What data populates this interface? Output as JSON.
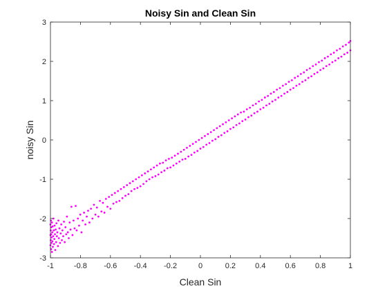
{
  "chart_data": {
    "type": "scatter",
    "title": "Noisy Sin and Clean Sin",
    "xlabel": "Clean Sin",
    "ylabel": "noisy Sin",
    "xlim": [
      -1,
      1
    ],
    "ylim": [
      -3,
      3
    ],
    "x_ticks": [
      -1,
      -0.8,
      -0.6,
      -0.4,
      -0.2,
      0,
      0.2,
      0.4,
      0.6,
      0.8,
      1
    ],
    "x_tick_labels": [
      "-1",
      "-0.8",
      "-0.6",
      "-0.4",
      "-0.2",
      "0",
      "0.2",
      "0.4",
      "0.6",
      "0.8",
      "1"
    ],
    "y_ticks": [
      -3,
      -2,
      -1,
      0,
      1,
      2,
      3
    ],
    "y_tick_labels": [
      "-3",
      "-2",
      "-1",
      "0",
      "1",
      "2",
      "3"
    ],
    "grid": false,
    "box": true,
    "marker_color": "#ff00ff",
    "series": [
      {
        "marker_color": "#ff00ff",
        "points": [
          [
            -1.0,
            -2.42
          ],
          [
            -1.0,
            -2.15
          ],
          [
            -1.0,
            -2.68
          ],
          [
            -0.998,
            -2.3
          ],
          [
            -0.998,
            -2.55
          ],
          [
            -0.997,
            -2.05
          ],
          [
            -0.996,
            -2.78
          ],
          [
            -0.995,
            -2.4
          ],
          [
            -0.994,
            -2.22
          ],
          [
            -0.993,
            -2.62
          ],
          [
            -0.992,
            -2.48
          ],
          [
            -0.99,
            -2.1
          ],
          [
            -0.99,
            -2.85
          ],
          [
            -0.988,
            -2.35
          ],
          [
            -0.987,
            -2.58
          ],
          [
            -0.985,
            -2.2
          ],
          [
            -0.984,
            -2.72
          ],
          [
            -0.982,
            -2.45
          ],
          [
            -0.98,
            -2.0
          ],
          [
            -0.978,
            -2.3
          ],
          [
            -0.976,
            -2.65
          ],
          [
            -0.974,
            -2.52
          ],
          [
            -0.972,
            -2.18
          ],
          [
            -0.97,
            -2.4
          ],
          [
            -0.968,
            -2.8
          ],
          [
            -0.965,
            -2.28
          ],
          [
            -0.962,
            -2.6
          ],
          [
            -0.96,
            -2.12
          ],
          [
            -0.957,
            -2.45
          ],
          [
            -0.954,
            -2.35
          ],
          [
            -0.95,
            -2.7
          ],
          [
            -0.947,
            -2.05
          ],
          [
            -0.944,
            -2.5
          ],
          [
            -0.94,
            -2.25
          ],
          [
            -0.936,
            -2.62
          ],
          [
            -0.932,
            -2.38
          ],
          [
            -0.928,
            -2.15
          ],
          [
            -0.924,
            -2.55
          ],
          [
            -0.92,
            -2.3
          ],
          [
            -0.915,
            -2.45
          ],
          [
            -0.91,
            -2.08
          ],
          [
            -0.905,
            -2.6
          ],
          [
            -0.9,
            -2.22
          ],
          [
            -0.895,
            -2.4
          ],
          [
            -0.89,
            -1.95
          ],
          [
            -0.884,
            -2.35
          ],
          [
            -0.878,
            -2.5
          ],
          [
            -0.872,
            -2.1
          ],
          [
            -0.866,
            -2.28
          ],
          [
            -0.86,
            -1.7
          ],
          [
            -0.853,
            -2.42
          ],
          [
            -0.846,
            -2.05
          ],
          [
            -0.839,
            -2.25
          ],
          [
            -0.832,
            -1.68
          ],
          [
            -0.825,
            -2.3
          ],
          [
            -0.817,
            -2.0
          ],
          [
            -0.809,
            -2.18
          ],
          [
            -0.801,
            -1.9
          ],
          [
            -0.793,
            -2.35
          ],
          [
            -0.785,
            -2.05
          ],
          [
            -0.776,
            -1.85
          ],
          [
            -0.767,
            -2.15
          ],
          [
            -0.758,
            -1.95
          ],
          [
            -0.749,
            -1.8
          ],
          [
            -0.74,
            -2.1
          ],
          [
            -0.73,
            -1.75
          ],
          [
            -0.72,
            -2.0
          ],
          [
            -0.71,
            -1.65
          ],
          [
            -0.7,
            -1.9
          ],
          [
            -0.69,
            -1.72
          ],
          [
            -0.68,
            -1.95
          ],
          [
            -0.67,
            -1.55
          ],
          [
            -0.66,
            -1.82
          ],
          [
            -0.65,
            -1.6
          ],
          [
            -0.64,
            -1.85
          ],
          [
            -0.63,
            -1.5
          ],
          [
            -0.62,
            -1.7
          ],
          [
            -0.61,
            -1.45
          ],
          [
            -0.6,
            -1.75
          ],
          [
            -0.59,
            -1.4
          ],
          [
            -0.58,
            -1.62
          ],
          [
            -0.57,
            -1.35
          ],
          [
            -0.56,
            -1.58
          ],
          [
            -0.55,
            -1.3
          ],
          [
            -0.54,
            -1.55
          ],
          [
            -0.53,
            -1.25
          ],
          [
            -0.52,
            -1.48
          ],
          [
            -0.51,
            -1.2
          ],
          [
            -0.5,
            -1.42
          ],
          [
            -0.49,
            -1.15
          ],
          [
            -0.48,
            -1.38
          ],
          [
            -0.47,
            -1.1
          ],
          [
            -0.46,
            -1.3
          ],
          [
            -0.45,
            -1.05
          ],
          [
            -0.44,
            -1.25
          ],
          [
            -0.43,
            -1.0
          ],
          [
            -0.42,
            -1.22
          ],
          [
            -0.41,
            -0.95
          ],
          [
            -0.4,
            -1.18
          ],
          [
            -0.39,
            -0.9
          ],
          [
            -0.38,
            -1.12
          ],
          [
            -0.37,
            -0.85
          ],
          [
            -0.36,
            -1.05
          ],
          [
            -0.35,
            -0.8
          ],
          [
            -0.34,
            -1.0
          ],
          [
            -0.33,
            -0.75
          ],
          [
            -0.32,
            -0.95
          ],
          [
            -0.31,
            -0.7
          ],
          [
            -0.3,
            -0.92
          ],
          [
            -0.29,
            -0.65
          ],
          [
            -0.28,
            -0.88
          ],
          [
            -0.27,
            -0.6
          ],
          [
            -0.26,
            -0.82
          ],
          [
            -0.25,
            -0.58
          ],
          [
            -0.24,
            -0.78
          ],
          [
            -0.23,
            -0.52
          ],
          [
            -0.22,
            -0.72
          ],
          [
            -0.21,
            -0.48
          ],
          [
            -0.2,
            -0.7
          ],
          [
            -0.19,
            -0.45
          ],
          [
            -0.18,
            -0.65
          ],
          [
            -0.17,
            -0.4
          ],
          [
            -0.16,
            -0.6
          ],
          [
            -0.15,
            -0.35
          ],
          [
            -0.14,
            -0.55
          ],
          [
            -0.13,
            -0.3
          ],
          [
            -0.12,
            -0.5
          ],
          [
            -0.11,
            -0.25
          ],
          [
            -0.1,
            -0.48
          ],
          [
            -0.09,
            -0.2
          ],
          [
            -0.08,
            -0.42
          ],
          [
            -0.07,
            -0.15
          ],
          [
            -0.06,
            -0.38
          ],
          [
            -0.05,
            -0.1
          ],
          [
            -0.04,
            -0.32
          ],
          [
            -0.03,
            -0.05
          ],
          [
            -0.02,
            -0.28
          ],
          [
            -0.01,
            0.0
          ],
          [
            0.0,
            -0.22
          ],
          [
            0.01,
            0.05
          ],
          [
            0.02,
            -0.18
          ],
          [
            0.03,
            0.1
          ],
          [
            0.04,
            -0.12
          ],
          [
            0.05,
            0.15
          ],
          [
            0.06,
            -0.08
          ],
          [
            0.07,
            0.2
          ],
          [
            0.08,
            -0.02
          ],
          [
            0.09,
            0.25
          ],
          [
            0.1,
            0.02
          ],
          [
            0.11,
            0.3
          ],
          [
            0.12,
            0.08
          ],
          [
            0.13,
            0.35
          ],
          [
            0.14,
            0.12
          ],
          [
            0.15,
            0.4
          ],
          [
            0.16,
            0.18
          ],
          [
            0.17,
            0.45
          ],
          [
            0.18,
            0.22
          ],
          [
            0.19,
            0.5
          ],
          [
            0.2,
            0.28
          ],
          [
            0.21,
            0.55
          ],
          [
            0.22,
            0.32
          ],
          [
            0.23,
            0.6
          ],
          [
            0.24,
            0.38
          ],
          [
            0.25,
            0.65
          ],
          [
            0.26,
            0.42
          ],
          [
            0.27,
            0.7
          ],
          [
            0.28,
            0.48
          ],
          [
            0.29,
            0.72
          ],
          [
            0.3,
            0.52
          ],
          [
            0.31,
            0.78
          ],
          [
            0.32,
            0.58
          ],
          [
            0.33,
            0.82
          ],
          [
            0.34,
            0.62
          ],
          [
            0.35,
            0.88
          ],
          [
            0.36,
            0.68
          ],
          [
            0.37,
            0.92
          ],
          [
            0.38,
            0.72
          ],
          [
            0.39,
            0.98
          ],
          [
            0.4,
            0.78
          ],
          [
            0.41,
            1.02
          ],
          [
            0.42,
            0.82
          ],
          [
            0.43,
            1.08
          ],
          [
            0.44,
            0.88
          ],
          [
            0.45,
            1.12
          ],
          [
            0.46,
            0.92
          ],
          [
            0.47,
            1.18
          ],
          [
            0.48,
            0.98
          ],
          [
            0.49,
            1.22
          ],
          [
            0.5,
            1.02
          ],
          [
            0.51,
            1.28
          ],
          [
            0.52,
            1.08
          ],
          [
            0.53,
            1.32
          ],
          [
            0.54,
            1.12
          ],
          [
            0.55,
            1.38
          ],
          [
            0.56,
            1.18
          ],
          [
            0.57,
            1.42
          ],
          [
            0.58,
            1.22
          ],
          [
            0.59,
            1.48
          ],
          [
            0.6,
            1.28
          ],
          [
            0.61,
            1.52
          ],
          [
            0.62,
            1.32
          ],
          [
            0.63,
            1.58
          ],
          [
            0.64,
            1.38
          ],
          [
            0.65,
            1.62
          ],
          [
            0.66,
            1.42
          ],
          [
            0.67,
            1.68
          ],
          [
            0.68,
            1.48
          ],
          [
            0.69,
            1.72
          ],
          [
            0.7,
            1.52
          ],
          [
            0.71,
            1.78
          ],
          [
            0.72,
            1.58
          ],
          [
            0.73,
            1.82
          ],
          [
            0.74,
            1.62
          ],
          [
            0.75,
            1.88
          ],
          [
            0.76,
            1.68
          ],
          [
            0.77,
            1.92
          ],
          [
            0.78,
            1.72
          ],
          [
            0.79,
            1.98
          ],
          [
            0.8,
            1.78
          ],
          [
            0.81,
            2.02
          ],
          [
            0.82,
            1.82
          ],
          [
            0.83,
            2.08
          ],
          [
            0.84,
            1.88
          ],
          [
            0.85,
            2.12
          ],
          [
            0.86,
            1.92
          ],
          [
            0.87,
            2.18
          ],
          [
            0.88,
            1.98
          ],
          [
            0.89,
            2.22
          ],
          [
            0.9,
            2.02
          ],
          [
            0.91,
            2.28
          ],
          [
            0.92,
            2.08
          ],
          [
            0.93,
            2.32
          ],
          [
            0.94,
            2.12
          ],
          [
            0.95,
            2.38
          ],
          [
            0.96,
            2.18
          ],
          [
            0.97,
            2.42
          ],
          [
            0.98,
            2.22
          ],
          [
            0.99,
            2.48
          ],
          [
            1.0,
            2.28
          ],
          [
            1.0,
            2.52
          ]
        ]
      }
    ]
  }
}
